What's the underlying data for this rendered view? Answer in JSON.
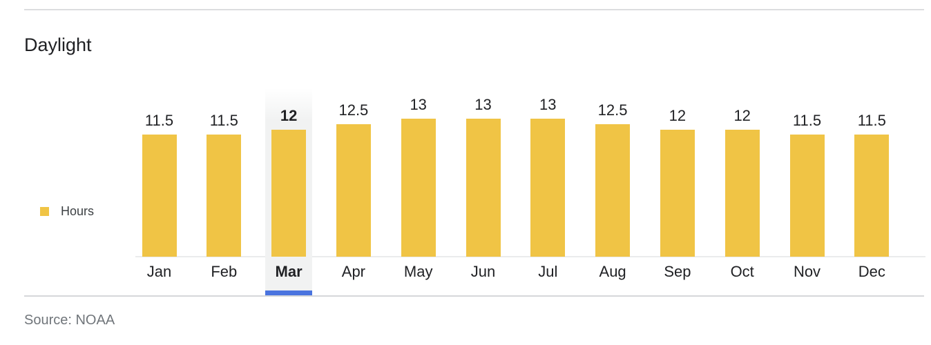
{
  "title": "Daylight",
  "legend": {
    "label": "Hours"
  },
  "source": {
    "text": "Source: NOAA"
  },
  "colors": {
    "bar": "#f0c445",
    "selected_underline": "#4a74df",
    "selected_column_highlight": "#f1f2f2",
    "divider": "#dadce0",
    "axis_baseline": "#eaebec",
    "text": "#202124",
    "legend_text": "#3c4043",
    "source_text": "#70757a"
  },
  "chart_data": {
    "type": "bar",
    "title": "Daylight",
    "categories": [
      "Jan",
      "Feb",
      "Mar",
      "Apr",
      "May",
      "Jun",
      "Jul",
      "Aug",
      "Sep",
      "Oct",
      "Nov",
      "Dec"
    ],
    "values": [
      11.5,
      11.5,
      12,
      12.5,
      13,
      13,
      13,
      12.5,
      12,
      12,
      11.5,
      11.5
    ],
    "value_labels": [
      "11.5",
      "11.5",
      "12",
      "12.5",
      "13",
      "13",
      "13",
      "12.5",
      "12",
      "12",
      "11.5",
      "11.5"
    ],
    "series": [
      {
        "name": "Hours",
        "values": [
          11.5,
          11.5,
          12,
          12.5,
          13,
          13,
          13,
          12.5,
          12,
          12,
          11.5,
          11.5
        ]
      }
    ],
    "xlabel": "",
    "ylabel": "Hours",
    "ylim": [
      0,
      13
    ],
    "grid": false,
    "legend_position": "left",
    "selected_index": 2,
    "selected_category": "Mar",
    "bar_color": "#f0c445",
    "value_labels_shown": true
  }
}
